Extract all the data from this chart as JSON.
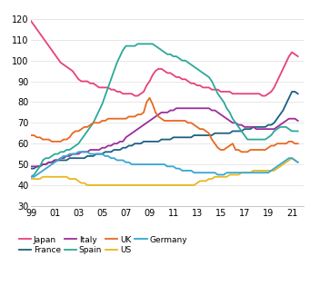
{
  "ylim": [
    30,
    125
  ],
  "xlim": [
    1999,
    2022
  ],
  "yticks": [
    30,
    40,
    50,
    60,
    70,
    80,
    90,
    100,
    110,
    120
  ],
  "xtick_labels": [
    "99",
    "01",
    "03",
    "05",
    "07",
    "09",
    "11",
    "13",
    "15",
    "17",
    "19",
    "21"
  ],
  "xtick_positions": [
    1999,
    2001,
    2003,
    2005,
    2007,
    2009,
    2011,
    2013,
    2015,
    2017,
    2019,
    2021
  ],
  "series": {
    "Japan": {
      "color": "#E8417A",
      "data_x": [
        1999,
        1999.25,
        1999.5,
        1999.75,
        2000,
        2000.25,
        2000.5,
        2000.75,
        2001,
        2001.25,
        2001.5,
        2001.75,
        2002,
        2002.25,
        2002.5,
        2002.75,
        2003,
        2003.25,
        2003.5,
        2003.75,
        2004,
        2004.25,
        2004.5,
        2004.75,
        2005,
        2005.25,
        2005.5,
        2005.75,
        2006,
        2006.25,
        2006.5,
        2006.75,
        2007,
        2007.25,
        2007.5,
        2007.75,
        2008,
        2008.25,
        2008.5,
        2008.75,
        2009,
        2009.25,
        2009.5,
        2009.75,
        2010,
        2010.25,
        2010.5,
        2010.75,
        2011,
        2011.25,
        2011.5,
        2011.75,
        2012,
        2012.25,
        2012.5,
        2012.75,
        2013,
        2013.25,
        2013.5,
        2013.75,
        2014,
        2014.25,
        2014.5,
        2014.75,
        2015,
        2015.25,
        2015.5,
        2015.75,
        2016,
        2016.25,
        2016.5,
        2016.75,
        2017,
        2017.25,
        2017.5,
        2017.75,
        2018,
        2018.25,
        2018.5,
        2018.75,
        2019,
        2019.25,
        2019.5,
        2019.75,
        2020,
        2020.25,
        2020.5,
        2020.75,
        2021,
        2021.25,
        2021.5
      ],
      "data_y": [
        119,
        117,
        115,
        113,
        111,
        109,
        107,
        105,
        103,
        101,
        99,
        98,
        97,
        96,
        95,
        93,
        91,
        90,
        90,
        90,
        89,
        89,
        88,
        87,
        87,
        87,
        87,
        86,
        86,
        85,
        85,
        84,
        84,
        84,
        84,
        83,
        83,
        84,
        85,
        88,
        90,
        93,
        95,
        96,
        96,
        95,
        94,
        94,
        93,
        92,
        92,
        91,
        91,
        90,
        89,
        89,
        88,
        88,
        87,
        87,
        87,
        86,
        86,
        86,
        85,
        85,
        85,
        85,
        84,
        84,
        84,
        84,
        84,
        84,
        84,
        84,
        84,
        84,
        83,
        83,
        84,
        85,
        87,
        90,
        93,
        96,
        99,
        102,
        104,
        103,
        102
      ]
    },
    "France": {
      "color": "#1C5F82",
      "data_x": [
        1999,
        1999.25,
        1999.5,
        1999.75,
        2000,
        2000.25,
        2000.5,
        2000.75,
        2001,
        2001.25,
        2001.5,
        2001.75,
        2002,
        2002.25,
        2002.5,
        2002.75,
        2003,
        2003.25,
        2003.5,
        2003.75,
        2004,
        2004.25,
        2004.5,
        2004.75,
        2005,
        2005.25,
        2005.5,
        2005.75,
        2006,
        2006.25,
        2006.5,
        2006.75,
        2007,
        2007.25,
        2007.5,
        2007.75,
        2008,
        2008.25,
        2008.5,
        2008.75,
        2009,
        2009.25,
        2009.5,
        2009.75,
        2010,
        2010.25,
        2010.5,
        2010.75,
        2011,
        2011.25,
        2011.5,
        2011.75,
        2012,
        2012.25,
        2012.5,
        2012.75,
        2013,
        2013.25,
        2013.5,
        2013.75,
        2014,
        2014.25,
        2014.5,
        2014.75,
        2015,
        2015.25,
        2015.5,
        2015.75,
        2016,
        2016.25,
        2016.5,
        2016.75,
        2017,
        2017.25,
        2017.5,
        2017.75,
        2018,
        2018.25,
        2018.5,
        2018.75,
        2019,
        2019.25,
        2019.5,
        2019.75,
        2020,
        2020.25,
        2020.5,
        2020.75,
        2021,
        2021.25,
        2021.5
      ],
      "data_y": [
        48,
        48,
        49,
        49,
        50,
        50,
        51,
        51,
        52,
        52,
        52,
        52,
        52,
        53,
        53,
        53,
        53,
        53,
        53,
        54,
        54,
        54,
        55,
        55,
        55,
        56,
        56,
        56,
        57,
        57,
        57,
        58,
        58,
        59,
        59,
        60,
        60,
        60,
        61,
        61,
        61,
        61,
        61,
        61,
        62,
        62,
        62,
        62,
        63,
        63,
        63,
        63,
        63,
        63,
        63,
        64,
        64,
        64,
        64,
        64,
        64,
        64,
        65,
        65,
        65,
        65,
        65,
        65,
        66,
        66,
        66,
        66,
        67,
        67,
        67,
        68,
        68,
        68,
        68,
        68,
        69,
        69,
        70,
        72,
        74,
        76,
        79,
        82,
        85,
        85,
        84
      ]
    },
    "Italy": {
      "color": "#9B2D9B",
      "data_x": [
        1999,
        1999.25,
        1999.5,
        1999.75,
        2000,
        2000.25,
        2000.5,
        2000.75,
        2001,
        2001.25,
        2001.5,
        2001.75,
        2002,
        2002.25,
        2002.5,
        2002.75,
        2003,
        2003.25,
        2003.5,
        2003.75,
        2004,
        2004.25,
        2004.5,
        2004.75,
        2005,
        2005.25,
        2005.5,
        2005.75,
        2006,
        2006.25,
        2006.5,
        2006.75,
        2007,
        2007.25,
        2007.5,
        2007.75,
        2008,
        2008.25,
        2008.5,
        2008.75,
        2009,
        2009.25,
        2009.5,
        2009.75,
        2010,
        2010.25,
        2010.5,
        2010.75,
        2011,
        2011.25,
        2011.5,
        2011.75,
        2012,
        2012.25,
        2012.5,
        2012.75,
        2013,
        2013.25,
        2013.5,
        2013.75,
        2014,
        2014.25,
        2014.5,
        2014.75,
        2015,
        2015.25,
        2015.5,
        2015.75,
        2016,
        2016.25,
        2016.5,
        2016.75,
        2017,
        2017.25,
        2017.5,
        2017.75,
        2018,
        2018.25,
        2018.5,
        2018.75,
        2019,
        2019.25,
        2019.5,
        2019.75,
        2020,
        2020.25,
        2020.5,
        2020.75,
        2021,
        2021.25,
        2021.5
      ],
      "data_y": [
        49,
        49,
        49,
        49,
        50,
        50,
        51,
        51,
        52,
        52,
        53,
        53,
        54,
        54,
        55,
        55,
        55,
        56,
        56,
        56,
        57,
        57,
        57,
        57,
        58,
        58,
        59,
        59,
        60,
        60,
        61,
        61,
        63,
        64,
        65,
        66,
        67,
        68,
        69,
        70,
        71,
        72,
        73,
        74,
        75,
        75,
        75,
        76,
        76,
        77,
        77,
        77,
        77,
        77,
        77,
        77,
        77,
        77,
        77,
        77,
        77,
        76,
        76,
        75,
        74,
        73,
        72,
        71,
        70,
        70,
        69,
        69,
        68,
        68,
        68,
        68,
        67,
        67,
        67,
        67,
        67,
        67,
        67,
        68,
        69,
        70,
        71,
        72,
        72,
        72,
        71
      ]
    },
    "Spain": {
      "color": "#2CA89A",
      "data_x": [
        1999,
        1999.25,
        1999.5,
        1999.75,
        2000,
        2000.25,
        2000.5,
        2000.75,
        2001,
        2001.25,
        2001.5,
        2001.75,
        2002,
        2002.25,
        2002.5,
        2002.75,
        2003,
        2003.25,
        2003.5,
        2003.75,
        2004,
        2004.25,
        2004.5,
        2004.75,
        2005,
        2005.25,
        2005.5,
        2005.75,
        2006,
        2006.25,
        2006.5,
        2006.75,
        2007,
        2007.25,
        2007.5,
        2007.75,
        2008,
        2008.25,
        2008.5,
        2008.75,
        2009,
        2009.25,
        2009.5,
        2009.75,
        2010,
        2010.25,
        2010.5,
        2010.75,
        2011,
        2011.25,
        2011.5,
        2011.75,
        2012,
        2012.25,
        2012.5,
        2012.75,
        2013,
        2013.25,
        2013.5,
        2013.75,
        2014,
        2014.25,
        2014.5,
        2014.75,
        2015,
        2015.25,
        2015.5,
        2015.75,
        2016,
        2016.25,
        2016.5,
        2016.75,
        2017,
        2017.25,
        2017.5,
        2017.75,
        2018,
        2018.25,
        2018.5,
        2018.75,
        2019,
        2019.25,
        2019.5,
        2019.75,
        2020,
        2020.25,
        2020.5,
        2020.75,
        2021,
        2021.25,
        2021.5
      ],
      "data_y": [
        44,
        45,
        47,
        49,
        52,
        53,
        53,
        54,
        55,
        55,
        56,
        56,
        57,
        57,
        58,
        59,
        60,
        62,
        64,
        66,
        68,
        70,
        73,
        76,
        79,
        83,
        87,
        91,
        95,
        99,
        102,
        105,
        107,
        107,
        107,
        107,
        108,
        108,
        108,
        108,
        108,
        108,
        107,
        106,
        105,
        104,
        103,
        103,
        102,
        102,
        101,
        100,
        100,
        99,
        98,
        97,
        96,
        95,
        94,
        93,
        92,
        90,
        87,
        84,
        82,
        80,
        77,
        75,
        72,
        70,
        68,
        66,
        64,
        62,
        62,
        62,
        62,
        62,
        62,
        62,
        63,
        64,
        66,
        67,
        68,
        68,
        68,
        67,
        66,
        66,
        66
      ]
    },
    "UK": {
      "color": "#E86820",
      "data_x": [
        1999,
        1999.25,
        1999.5,
        1999.75,
        2000,
        2000.25,
        2000.5,
        2000.75,
        2001,
        2001.25,
        2001.5,
        2001.75,
        2002,
        2002.25,
        2002.5,
        2002.75,
        2003,
        2003.25,
        2003.5,
        2003.75,
        2004,
        2004.25,
        2004.5,
        2004.75,
        2005,
        2005.25,
        2005.5,
        2005.75,
        2006,
        2006.25,
        2006.5,
        2006.75,
        2007,
        2007.25,
        2007.5,
        2007.75,
        2008,
        2008.25,
        2008.5,
        2008.75,
        2009,
        2009.25,
        2009.5,
        2009.75,
        2010,
        2010.25,
        2010.5,
        2010.75,
        2011,
        2011.25,
        2011.5,
        2011.75,
        2012,
        2012.25,
        2012.5,
        2012.75,
        2013,
        2013.25,
        2013.5,
        2013.75,
        2014,
        2014.25,
        2014.5,
        2014.75,
        2015,
        2015.25,
        2015.5,
        2015.75,
        2016,
        2016.25,
        2016.5,
        2016.75,
        2017,
        2017.25,
        2017.5,
        2017.75,
        2018,
        2018.25,
        2018.5,
        2018.75,
        2019,
        2019.25,
        2019.5,
        2019.75,
        2020,
        2020.25,
        2020.5,
        2020.75,
        2021,
        2021.25,
        2021.5
      ],
      "data_y": [
        64,
        64,
        63,
        63,
        62,
        62,
        62,
        61,
        61,
        61,
        61,
        62,
        62,
        63,
        65,
        66,
        66,
        67,
        68,
        68,
        69,
        70,
        70,
        70,
        71,
        71,
        72,
        72,
        72,
        72,
        72,
        72,
        72,
        73,
        73,
        73,
        74,
        74,
        75,
        80,
        82,
        79,
        75,
        73,
        72,
        71,
        71,
        71,
        71,
        71,
        71,
        71,
        71,
        70,
        70,
        69,
        68,
        67,
        67,
        66,
        65,
        62,
        60,
        58,
        57,
        57,
        58,
        59,
        60,
        57,
        57,
        56,
        56,
        56,
        57,
        57,
        57,
        57,
        57,
        57,
        58,
        59,
        59,
        60,
        60,
        60,
        60,
        61,
        61,
        60,
        60
      ]
    },
    "US": {
      "color": "#E8B820",
      "data_x": [
        1999,
        1999.25,
        1999.5,
        1999.75,
        2000,
        2000.25,
        2000.5,
        2000.75,
        2001,
        2001.25,
        2001.5,
        2001.75,
        2002,
        2002.25,
        2002.5,
        2002.75,
        2003,
        2003.25,
        2003.5,
        2003.75,
        2004,
        2004.25,
        2004.5,
        2004.75,
        2005,
        2005.25,
        2005.5,
        2005.75,
        2006,
        2006.25,
        2006.5,
        2006.75,
        2007,
        2007.25,
        2007.5,
        2007.75,
        2008,
        2008.25,
        2008.5,
        2008.75,
        2009,
        2009.25,
        2009.5,
        2009.75,
        2010,
        2010.25,
        2010.5,
        2010.75,
        2011,
        2011.25,
        2011.5,
        2011.75,
        2012,
        2012.25,
        2012.5,
        2012.75,
        2013,
        2013.25,
        2013.5,
        2013.75,
        2014,
        2014.25,
        2014.5,
        2014.75,
        2015,
        2015.25,
        2015.5,
        2015.75,
        2016,
        2016.25,
        2016.5,
        2016.75,
        2017,
        2017.25,
        2017.5,
        2017.75,
        2018,
        2018.25,
        2018.5,
        2018.75,
        2019,
        2019.25,
        2019.5,
        2019.75,
        2020,
        2020.25,
        2020.5,
        2020.75,
        2021,
        2021.25,
        2021.5
      ],
      "data_y": [
        43,
        43,
        43,
        43,
        44,
        44,
        44,
        44,
        44,
        44,
        44,
        44,
        44,
        43,
        43,
        43,
        42,
        41,
        41,
        40,
        40,
        40,
        40,
        40,
        40,
        40,
        40,
        40,
        40,
        40,
        40,
        40,
        40,
        40,
        40,
        40,
        40,
        40,
        40,
        40,
        40,
        40,
        40,
        40,
        40,
        40,
        40,
        40,
        40,
        40,
        40,
        40,
        40,
        40,
        40,
        40,
        41,
        42,
        42,
        42,
        43,
        43,
        44,
        44,
        44,
        44,
        44,
        45,
        45,
        45,
        45,
        46,
        46,
        46,
        46,
        47,
        47,
        47,
        47,
        47,
        47,
        47,
        47,
        48,
        49,
        50,
        51,
        52,
        53,
        52,
        51
      ]
    },
    "Germany": {
      "color": "#35A7D1",
      "data_x": [
        1999,
        1999.25,
        1999.5,
        1999.75,
        2000,
        2000.25,
        2000.5,
        2000.75,
        2001,
        2001.25,
        2001.5,
        2001.75,
        2002,
        2002.25,
        2002.5,
        2002.75,
        2003,
        2003.25,
        2003.5,
        2003.75,
        2004,
        2004.25,
        2004.5,
        2004.75,
        2005,
        2005.25,
        2005.5,
        2005.75,
        2006,
        2006.25,
        2006.5,
        2006.75,
        2007,
        2007.25,
        2007.5,
        2007.75,
        2008,
        2008.25,
        2008.5,
        2008.75,
        2009,
        2009.25,
        2009.5,
        2009.75,
        2010,
        2010.25,
        2010.5,
        2010.75,
        2011,
        2011.25,
        2011.5,
        2011.75,
        2012,
        2012.25,
        2012.5,
        2012.75,
        2013,
        2013.25,
        2013.5,
        2013.75,
        2014,
        2014.25,
        2014.5,
        2014.75,
        2015,
        2015.25,
        2015.5,
        2015.75,
        2016,
        2016.25,
        2016.5,
        2016.75,
        2017,
        2017.25,
        2017.5,
        2017.75,
        2018,
        2018.25,
        2018.5,
        2018.75,
        2019,
        2019.25,
        2019.5,
        2019.75,
        2020,
        2020.25,
        2020.5,
        2020.75,
        2021,
        2021.25,
        2021.5
      ],
      "data_y": [
        44,
        44,
        45,
        46,
        47,
        48,
        49,
        50,
        51,
        52,
        53,
        54,
        54,
        55,
        55,
        55,
        56,
        56,
        56,
        56,
        55,
        55,
        55,
        55,
        55,
        54,
        54,
        53,
        53,
        52,
        52,
        52,
        51,
        51,
        50,
        50,
        50,
        50,
        50,
        50,
        50,
        50,
        50,
        50,
        50,
        50,
        49,
        49,
        49,
        48,
        48,
        47,
        47,
        47,
        47,
        46,
        46,
        46,
        46,
        46,
        46,
        46,
        46,
        45,
        45,
        45,
        46,
        46,
        46,
        46,
        46,
        46,
        46,
        46,
        46,
        46,
        46,
        46,
        46,
        46,
        46,
        47,
        48,
        49,
        50,
        51,
        52,
        53,
        53,
        52,
        51
      ]
    }
  },
  "legend_row1": [
    {
      "label": "Japan",
      "color": "#E8417A"
    },
    {
      "label": "France",
      "color": "#1C5F82"
    },
    {
      "label": "Italy",
      "color": "#9B2D9B"
    },
    {
      "label": "Spain",
      "color": "#2CA89A"
    }
  ],
  "legend_row2": [
    {
      "label": "UK",
      "color": "#E86820"
    },
    {
      "label": "US",
      "color": "#E8B820"
    },
    {
      "label": "Germany",
      "color": "#35A7D1"
    }
  ],
  "linewidth": 1.3,
  "tick_fontsize": 7,
  "legend_fontsize": 6.5
}
